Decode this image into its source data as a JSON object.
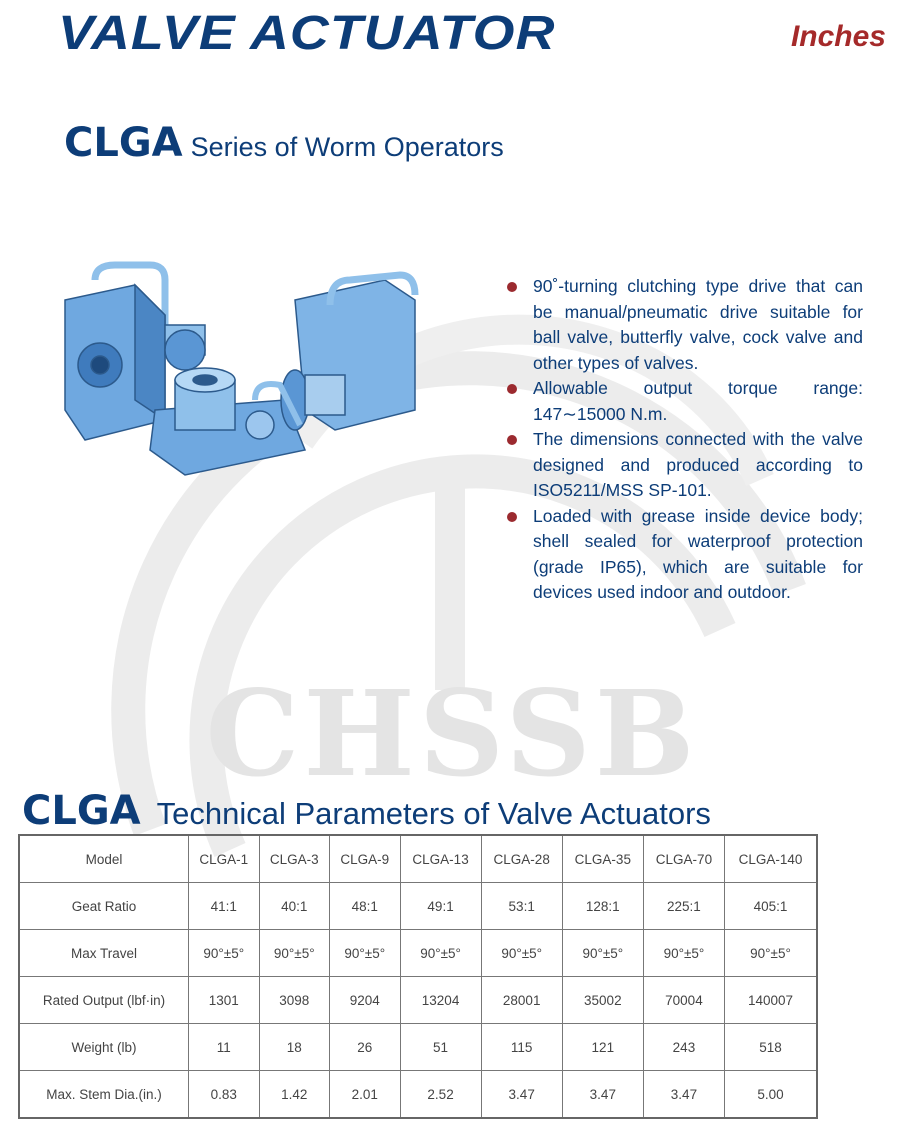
{
  "header": {
    "title": "VALVE ACTUATOR",
    "units": "Inches"
  },
  "series": {
    "code": "CLGA",
    "title": "Series of Worm Operators"
  },
  "watermark": "CHSSB",
  "features": [
    "90˚-turning clutching type drive that can be manual/pneumatic drive suitable for ball valve, butterfly valve, cock valve and other types of valves.",
    "Allowable output torque range: 147∼15000 N.m.",
    "The dimensions connected with the valve designed and produced according to ISO5211/MSS SP-101.",
    "Loaded with grease inside device body; shell sealed for waterproof protection (grade IP65), which are suitable for devices used indoor and outdoor."
  ],
  "table_section": {
    "code": "CLGA",
    "title": "Technical Parameters of Valve Actuators"
  },
  "table": {
    "rows": [
      {
        "label": "Model",
        "values": [
          "CLGA-1",
          "CLGA-3",
          "CLGA-9",
          "CLGA-13",
          "CLGA-28",
          "CLGA-35",
          "CLGA-70",
          "CLGA-140"
        ]
      },
      {
        "label": "Geat Ratio",
        "values": [
          "41:1",
          "40:1",
          "48:1",
          "49:1",
          "53:1",
          "128:1",
          "225:1",
          "405:1"
        ]
      },
      {
        "label": "Max Travel",
        "values": [
          "90°±5°",
          "90°±5°",
          "90°±5°",
          "90°±5°",
          "90°±5°",
          "90°±5°",
          "90°±5°",
          "90°±5°"
        ]
      },
      {
        "label": "Rated Output (lbf·in)",
        "values": [
          "1301",
          "3098",
          "9204",
          "13204",
          "28001",
          "35002",
          "70004",
          "140007"
        ]
      },
      {
        "label": "Weight (lb)",
        "values": [
          "11",
          "18",
          "26",
          "51",
          "115",
          "121",
          "243",
          "518"
        ]
      },
      {
        "label": "Max. Stem Dia.(in.)",
        "values": [
          "0.83",
          "1.42",
          "2.01",
          "2.52",
          "3.47",
          "3.47",
          "3.47",
          "5.00"
        ]
      }
    ]
  },
  "colors": {
    "brand_blue": "#0d3d78",
    "accent_red": "#a52a2a",
    "bullet": "#9b2a2f",
    "watermark": "#e6e6e6",
    "product_blue": "#6fa8e0"
  }
}
